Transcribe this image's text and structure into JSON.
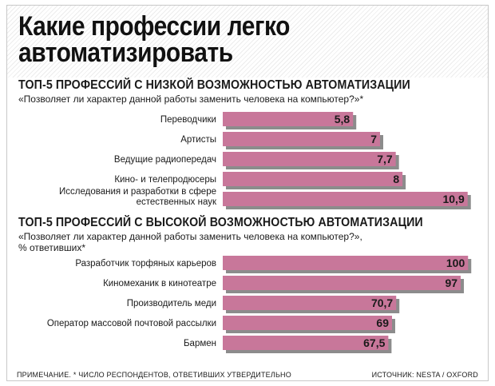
{
  "title": "Какие профессии легко автоматизировать",
  "colors": {
    "bar": "#c8779a",
    "bar_shadow": "#8c8c8c",
    "text": "#1a1a1a"
  },
  "sections": [
    {
      "heading": "ТОП-5 ПРОФЕССИЙ С НИЗКОЙ ВОЗМОЖНОСТЬЮ АВТОМАТИЗАЦИИ",
      "subheading": "«Позволяет ли характер данной работы заменить человека на компьютер?»*"
    },
    {
      "heading": "ТОП-5 ПРОФЕССИЙ С ВЫСОКОЙ ВОЗМОЖНОСТЬЮ АВТОМАТИЗАЦИИ",
      "subheading": "«Позволяет ли характер данной работы заменить человека на компьютер?»,\n% ответивших*"
    }
  ],
  "chart_data": [
    {
      "type": "bar",
      "orientation": "horizontal",
      "categories": [
        "Переводчики",
        "Артисты",
        "Ведущие радиопередач",
        "Кино- и телепродюсеры",
        "Исследования и разработки в сфере\nестественных наук"
      ],
      "values": [
        5.8,
        7,
        7.7,
        8,
        10.9
      ],
      "value_labels": [
        "5,8",
        "7",
        "7,7",
        "8",
        "10,9"
      ],
      "xlim": [
        0,
        11.3
      ]
    },
    {
      "type": "bar",
      "orientation": "horizontal",
      "categories": [
        "Разработчик торфяных карьеров",
        "Киномеханик в кинотеатре",
        "Производитель меди",
        "Оператор массовой почтовой рассылки",
        "Бармен"
      ],
      "values": [
        100,
        97,
        70.7,
        69,
        67.5
      ],
      "value_labels": [
        "100",
        "97",
        "70,7",
        "69",
        "67,5"
      ],
      "xlim": [
        0,
        103.5
      ]
    }
  ],
  "footnote": "ПРИМЕЧАНИЕ. * ЧИСЛО РЕСПОНДЕНТОВ, ОТВЕТИВШИХ УТВЕРДИТЕЛЬНО",
  "source": "ИСТОЧНИК: NESTA / OXFORD"
}
